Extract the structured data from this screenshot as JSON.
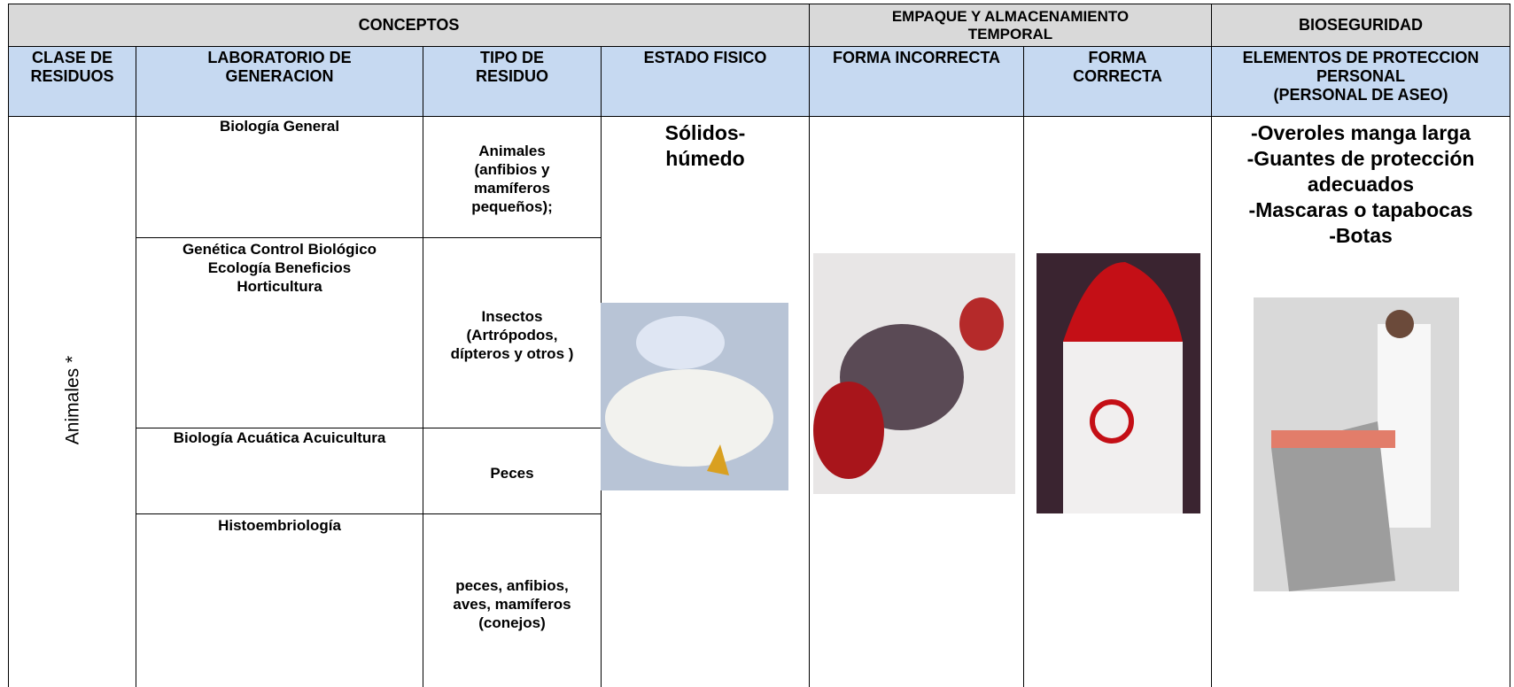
{
  "header": {
    "groups": [
      "CONCEPTOS",
      "EMPAQUE Y ALMACENAMIENTO\nTEMPORAL",
      "BIOSEGURIDAD"
    ],
    "columns": [
      "CLASE DE\nRESIDUOS",
      "LABORATORIO DE\nGENERACION",
      "TIPO DE\nRESIDUO",
      "ESTADO FISICO",
      "FORMA INCORRECTA",
      "FORMA\nCORRECTA",
      "ELEMENTOS DE PROTECCION\nPERSONAL\n(PERSONAL DE ASEO)"
    ]
  },
  "body": {
    "clase": "Animales *",
    "rows": [
      {
        "laboratorio": "Biología General",
        "tipo": "Animales\n(anfibios y\nmamíferos\npequeños);"
      },
      {
        "laboratorio": "Genética Control Biológico\nEcología Beneficios\nHorticultura",
        "tipo": "Insectos\n(Artrópodos,\ndípteros y otros )"
      },
      {
        "laboratorio": "Biología Acuática Acuicultura",
        "tipo": "Peces"
      },
      {
        "laboratorio": "Histoembriología",
        "tipo": "peces, anfibios,\naves, mamíferos\n(conejos)"
      }
    ],
    "estado": "Sólidos-\nhúmedo",
    "epp": "-Overoles manga larga\n-Guantes de protección\nadecuados\n-Mascaras o tapabocas\n-Botas"
  }
}
